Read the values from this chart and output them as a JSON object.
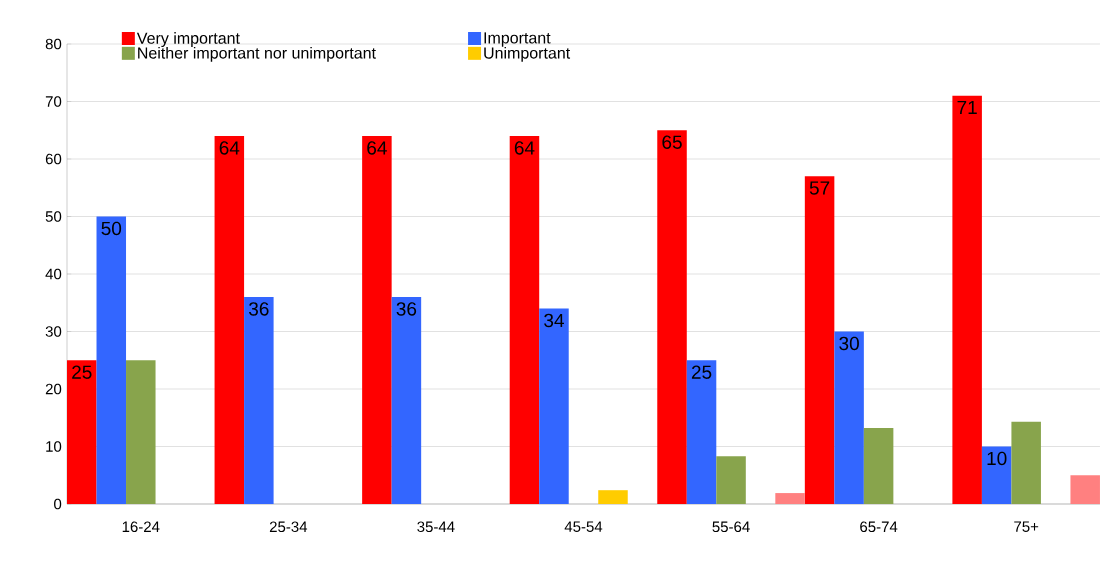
{
  "chart_data": {
    "type": "bar",
    "categories": [
      "16-24",
      "25-34",
      "35-44",
      "45-54",
      "55-64",
      "65-74",
      "75+"
    ],
    "series": [
      {
        "name": "Very important",
        "color": "#ff0000",
        "values": [
          25,
          64,
          64,
          64,
          65,
          57,
          71
        ],
        "value_labels": [
          "25",
          "64",
          "64",
          "64",
          "65",
          "57",
          "71"
        ]
      },
      {
        "name": "Important",
        "color": "#3366ff",
        "values": [
          50,
          36,
          36,
          34,
          25,
          30,
          10
        ],
        "value_labels": [
          "50",
          "36",
          "36",
          "34",
          "25",
          "30",
          "10"
        ]
      },
      {
        "name": "Neither important nor unimportant",
        "color": "#88a44c",
        "values": [
          25,
          null,
          null,
          null,
          8.3,
          13.2,
          14.3
        ]
      },
      {
        "name": "Unimportant",
        "color": "#ffcc00",
        "values": [
          null,
          null,
          null,
          2.4,
          null,
          null,
          null
        ]
      },
      {
        "color": "#ff8080",
        "values": [
          null,
          null,
          null,
          null,
          1.9,
          null,
          5
        ]
      }
    ],
    "ylim": [
      0,
      80
    ],
    "yticks": [
      0,
      10,
      20,
      30,
      40,
      50,
      60,
      70,
      80
    ],
    "grid": "y",
    "legend": "top"
  }
}
